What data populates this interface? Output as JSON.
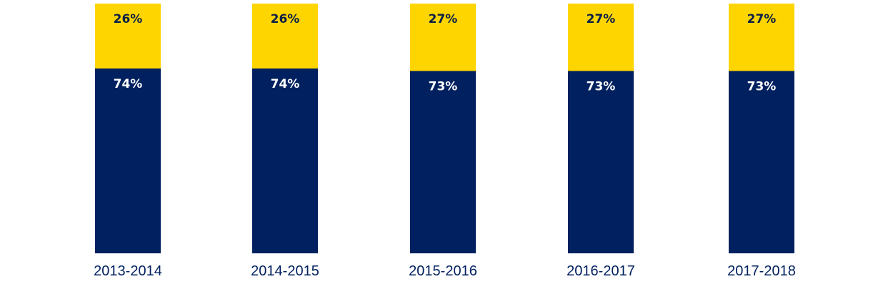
{
  "chart_data": {
    "type": "bar",
    "stacked": true,
    "normalized": true,
    "categories": [
      "2013-2014",
      "2014-2015",
      "2015-2016",
      "2016-2017",
      "2017-2018"
    ],
    "series": [
      {
        "values": [
          74,
          74,
          73,
          73,
          73
        ],
        "labels": [
          "74%",
          "74%",
          "73%",
          "73%",
          "73%"
        ],
        "color": "#00205f",
        "label_color": "#ffffff"
      },
      {
        "values": [
          26,
          26,
          27,
          27,
          27
        ],
        "labels": [
          "26%",
          "26%",
          "27%",
          "27%",
          "27%"
        ],
        "color": "#ffd500",
        "label_color": "#0c1f45"
      }
    ],
    "ylim": [
      0,
      100
    ],
    "category_label_color": "#00205f",
    "background": "#ffffff",
    "grid": false,
    "legend": "none"
  }
}
